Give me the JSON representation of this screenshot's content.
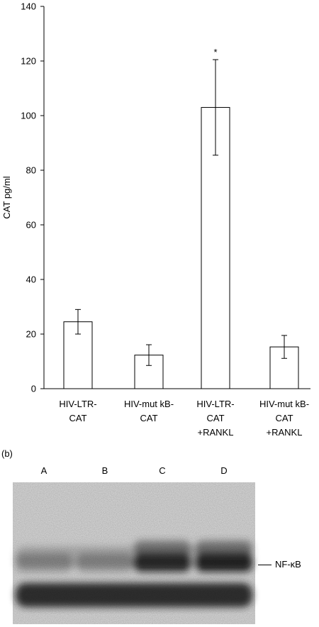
{
  "chart_data": {
    "type": "bar",
    "ylabel": "CAT pg/ml",
    "ylim": [
      0,
      140
    ],
    "yticks": [
      0,
      20,
      40,
      60,
      80,
      100,
      120,
      140
    ],
    "categories": [
      [
        "HIV-LTR-",
        "CAT"
      ],
      [
        "HIV-mut kB-",
        "CAT"
      ],
      [
        "HIV-LTR-",
        "CAT",
        "+RANKL"
      ],
      [
        "HIV-mut kB-",
        "CAT",
        "+RANKL"
      ]
    ],
    "values": [
      24.5,
      12.3,
      103,
      15.3
    ],
    "errors": [
      4.5,
      3.8,
      17.5,
      4.2
    ],
    "annotations": [
      "",
      "",
      "*",
      ""
    ],
    "bar_fill": "#ffffff",
    "line_color": "#000000",
    "grid": false,
    "legend": "none"
  },
  "panel_b": {
    "label": "(b)",
    "lanes": [
      "A",
      "B",
      "C",
      "D"
    ],
    "band_label": "NF-κB",
    "band_strength": [
      0.1,
      0.1,
      0.9,
      0.95
    ]
  }
}
